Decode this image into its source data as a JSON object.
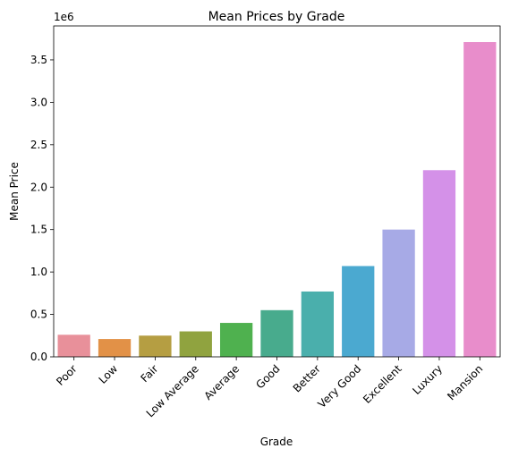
{
  "chart_data": {
    "type": "bar",
    "title": "Mean Prices by Grade",
    "xlabel": "Grade",
    "ylabel": "Mean Price",
    "y_offset_label": "1e6",
    "ylim": [
      0,
      3.9
    ],
    "y_ticks": [
      "0.0",
      "0.5",
      "1.0",
      "1.5",
      "2.0",
      "2.5",
      "3.0",
      "3.5"
    ],
    "y_tick_values": [
      0,
      0.5,
      1.0,
      1.5,
      2.0,
      2.5,
      3.0,
      3.5
    ],
    "categories": [
      "Poor",
      "Low",
      "Fair",
      "Low Average",
      "Average",
      "Good",
      "Better",
      "Very Good",
      "Excellent",
      "Luxury",
      "Mansion"
    ],
    "values": [
      0.26,
      0.21,
      0.25,
      0.3,
      0.4,
      0.55,
      0.77,
      1.07,
      1.5,
      2.2,
      3.71
    ],
    "colors": [
      "#e8909a",
      "#e29147",
      "#b59e42",
      "#90a33f",
      "#4fb14f",
      "#48ab8d",
      "#4aafac",
      "#4ba9d0",
      "#a7aae6",
      "#d491e8",
      "#e88dcb"
    ],
    "grid": false,
    "legend": "none"
  }
}
